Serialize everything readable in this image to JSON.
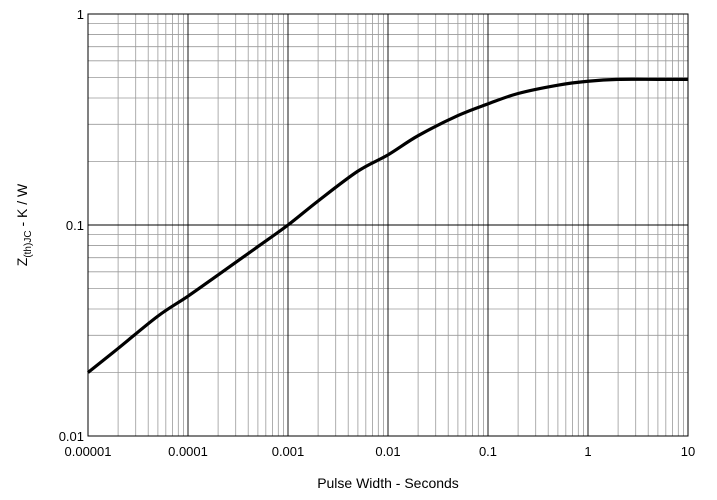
{
  "chart_data": {
    "type": "line",
    "xscale": "log",
    "yscale": "log",
    "xlim": [
      1e-05,
      10
    ],
    "ylim": [
      0.01,
      1
    ],
    "grid": true,
    "xlabel": "Pulse Width - Seconds",
    "ylabel": {
      "main": "Z",
      "subscript": "(th)JC",
      "suffix": " - K / W"
    },
    "xticks": [
      {
        "value": 1e-05,
        "label": "0.00001"
      },
      {
        "value": 0.0001,
        "label": "0.0001"
      },
      {
        "value": 0.001,
        "label": "0.001"
      },
      {
        "value": 0.01,
        "label": "0.01"
      },
      {
        "value": 0.1,
        "label": "0.1"
      },
      {
        "value": 1,
        "label": "1"
      },
      {
        "value": 10,
        "label": "10"
      }
    ],
    "yticks": [
      {
        "value": 0.01,
        "label": "0.01"
      },
      {
        "value": 0.1,
        "label": "0.1"
      },
      {
        "value": 1,
        "label": "1"
      }
    ],
    "series": [
      {
        "color": "#000000",
        "x": [
          1e-05,
          2e-05,
          5e-05,
          0.0001,
          0.0002,
          0.0005,
          0.001,
          0.002,
          0.005,
          0.01,
          0.02,
          0.05,
          0.1,
          0.2,
          0.5,
          1,
          2,
          5,
          10
        ],
        "y": [
          0.02,
          0.026,
          0.037,
          0.046,
          0.058,
          0.079,
          0.1,
          0.13,
          0.18,
          0.215,
          0.265,
          0.33,
          0.375,
          0.42,
          0.46,
          0.48,
          0.49,
          0.49,
          0.49
        ]
      }
    ]
  }
}
